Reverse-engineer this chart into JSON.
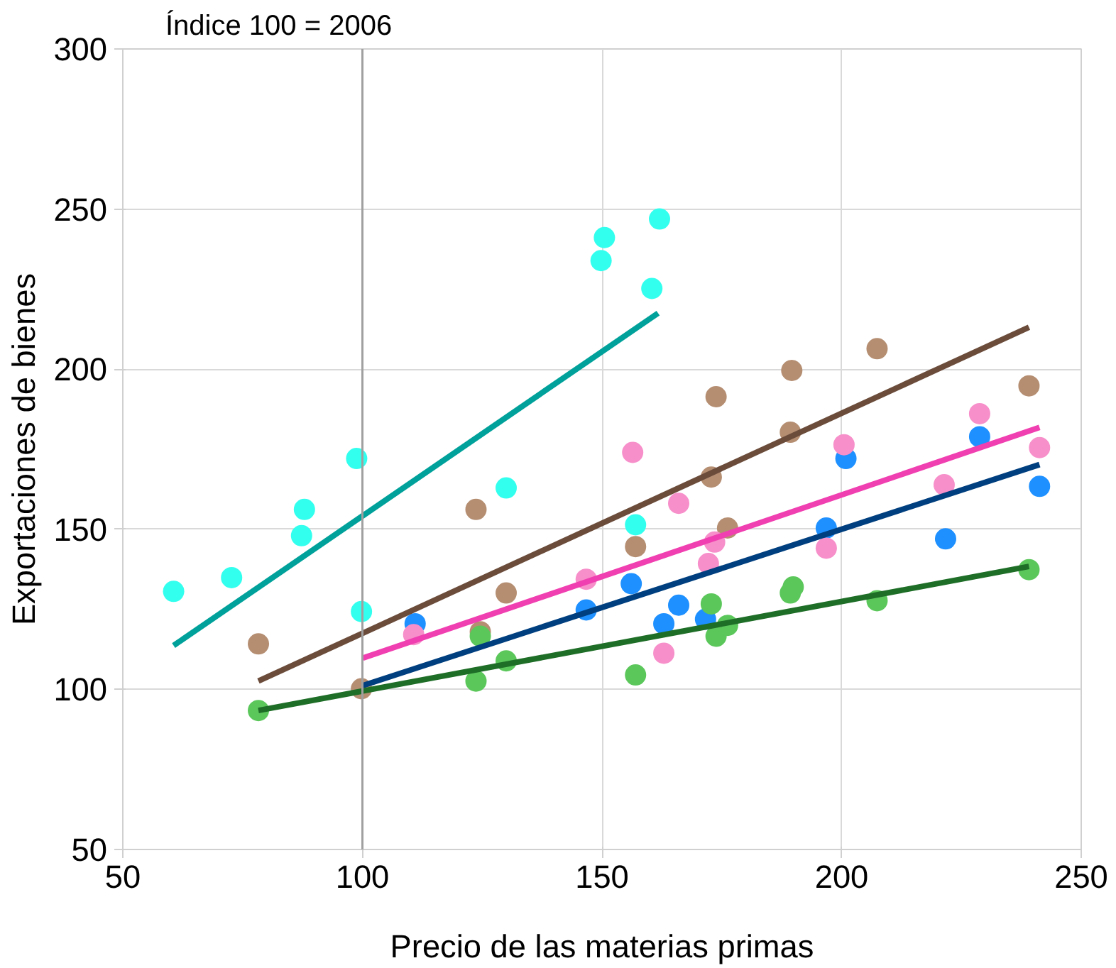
{
  "chart_data": {
    "type": "scatter",
    "title": "Índice 100 = 2006",
    "xlabel": "Precio de las materias primas",
    "ylabel": "Exportaciones de bienes",
    "xlim": [
      50,
      250
    ],
    "ylim": [
      50,
      300
    ],
    "xticks": [
      50,
      100,
      150,
      200,
      250
    ],
    "yticks": [
      50,
      100,
      150,
      200,
      250,
      300
    ],
    "grid": true,
    "marker": "circle",
    "ref_lines": [
      {
        "axis": "x",
        "value": 100,
        "color": "#a0a0a0"
      }
    ],
    "series": [
      {
        "color": "#33ffee",
        "x": [
          60.6,
          72.7,
          87.3,
          87.9,
          98.8,
          99.8,
          130,
          157,
          150.5,
          149.8,
          162,
          160.4
        ],
        "values": [
          130.6,
          134.9,
          148,
          156.2,
          172.1,
          124.3,
          162.9,
          151.4,
          241.1,
          233.9,
          246.9,
          225.2
        ]
      },
      {
        "color": "#b58e72",
        "x": [
          78.3,
          99.8,
          123.7,
          130,
          124.6,
          157,
          173.8,
          172.8,
          176.2,
          189.3,
          189.6,
          207.4,
          239.1
        ],
        "values": [
          114.2,
          100.2,
          156.2,
          130.1,
          118,
          144.6,
          191.4,
          166.3,
          150.4,
          180.3,
          199.6,
          206.4,
          194.8
        ]
      },
      {
        "color": "#1e90ff",
        "x": [
          111,
          146.7,
          156.1,
          166,
          162.9,
          171.6,
          196.8,
          200.9,
          228.8,
          221.7,
          241.3
        ],
        "values": [
          120.5,
          124.8,
          133,
          126.3,
          120.5,
          121.9,
          150.4,
          172.1,
          178.9,
          147,
          163.4
        ]
      },
      {
        "color": "#f78fca",
        "x": [
          110.7,
          146.7,
          156.4,
          166,
          172.2,
          173.5,
          162.9,
          200.5,
          221.4,
          196.8,
          228.8,
          241.3
        ],
        "values": [
          117.1,
          134.4,
          174,
          158.1,
          139.3,
          146,
          111.3,
          176.4,
          163.9,
          144.1,
          186.1,
          175.5
        ]
      },
      {
        "color": "#5bc75b",
        "x": [
          78.3,
          123.7,
          124.6,
          130,
          157,
          172.8,
          173.8,
          176.2,
          189.3,
          189.9,
          207.4,
          239.1
        ],
        "values": [
          93.4,
          102.6,
          116.6,
          108.9,
          104.5,
          126.7,
          116.6,
          120,
          130.1,
          132,
          127.7,
          137.4
        ]
      },
      {
        "type": "line",
        "marker": "none",
        "color": "#00a19a",
        "x": [
          60.6,
          161.7
        ],
        "values": [
          113.7,
          217.5
        ]
      },
      {
        "type": "line",
        "marker": "none",
        "color": "#6b4c3b",
        "x": [
          78.3,
          239.1
        ],
        "values": [
          102.6,
          213.1
        ]
      },
      {
        "type": "line",
        "marker": "none",
        "color": "#f03fb0",
        "x": [
          100.1,
          241.3
        ],
        "values": [
          109.8,
          181.8
        ]
      },
      {
        "type": "line",
        "marker": "none",
        "color": "#003f7f",
        "x": [
          100.1,
          241.3
        ],
        "values": [
          101.2,
          170.2
        ]
      },
      {
        "type": "line",
        "marker": "none",
        "color": "#1f6e28",
        "x": [
          78.3,
          239.1
        ],
        "values": [
          93.4,
          138.4
        ]
      }
    ]
  }
}
